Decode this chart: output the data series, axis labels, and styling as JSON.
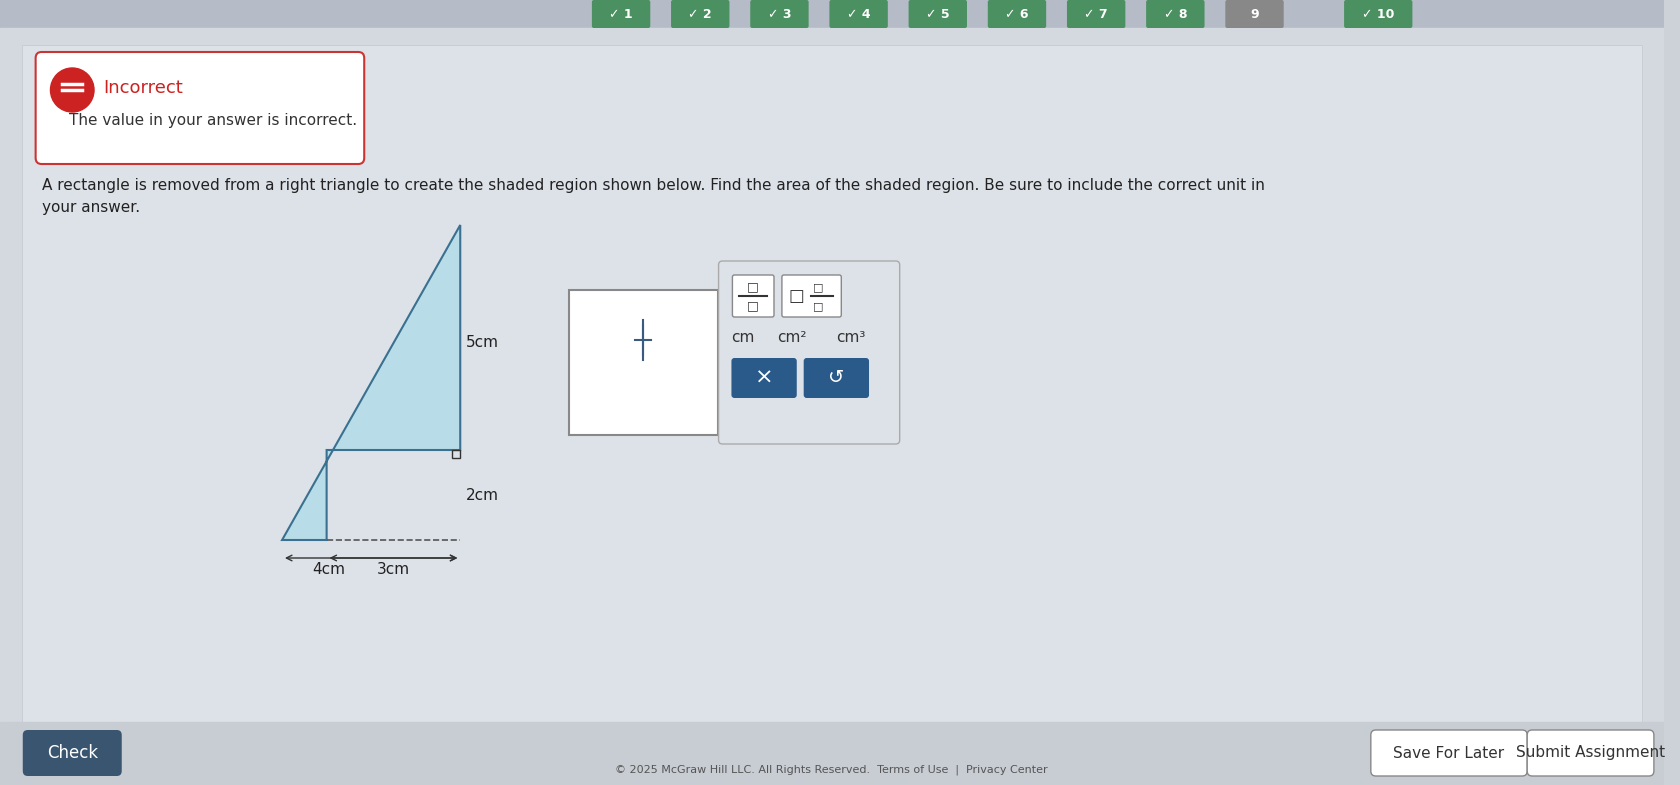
{
  "bg_color": "#cdd2d9",
  "incorrect_text": "Incorrect",
  "incorrect_subtext": "The value in your answer is incorrect.",
  "problem_text1": "A rectangle is removed from a right triangle to create the shaded region shown below. Find the area of the shaded region. Be sure to include the correct unit in",
  "problem_text2": "your answer.",
  "triangle_fill": "#b8dde8",
  "triangle_stroke": "#3a7090",
  "dim_5cm": "5cm",
  "dim_4cm": "4cm",
  "dim_3cm": "3cm",
  "dim_2cm": "2cm",
  "check_btn_text": "Check",
  "save_btn_text": "Save For Later",
  "submit_btn_text": "Submit Assignment",
  "footer_text": "© 2025 McGraw Hill LLC. All Rights Reserved.  Terms of Use  |  Privacy Center",
  "tab_labels": [
    "✓ 1",
    "✓ 2",
    "✓ 3",
    "✓ 4",
    "✓ 5",
    "✓ 6",
    "✓ 7",
    "✓ 8",
    "9",
    "✓ 10"
  ],
  "tab_colors": [
    "#4a9060",
    "#4a9060",
    "#4a9060",
    "#4a9060",
    "#4a9060",
    "#4a9060",
    "#4a9060",
    "#4a9060",
    "#888888",
    "#4a9060"
  ],
  "notif_border": "#cc3333",
  "icon_red": "#cc2222",
  "x_btn_color": "#2a5a8a",
  "redo_btn_color": "#2a5a8a"
}
